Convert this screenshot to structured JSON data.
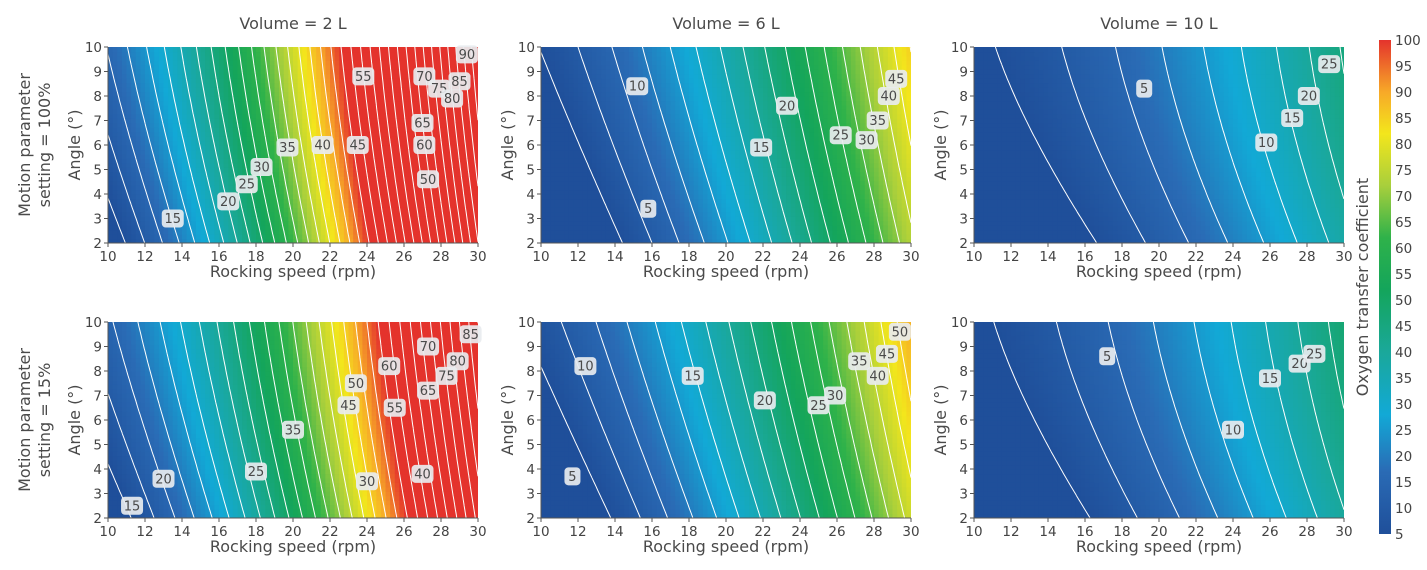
{
  "row_labels": [
    "Motion parameter\nsetting = 100%",
    "Motion parameter\nsetting = 15%"
  ],
  "colorbar": {
    "label": "Oxygen transfer coefficient",
    "min": 5,
    "max": 100,
    "ticks": [
      5,
      10,
      15,
      20,
      25,
      30,
      35,
      40,
      45,
      50,
      55,
      60,
      65,
      70,
      75,
      80,
      85,
      90,
      95,
      100
    ],
    "stops": [
      {
        "v": 5,
        "color": "#1f4f9a"
      },
      {
        "v": 17,
        "color": "#2a6bb5"
      },
      {
        "v": 28,
        "color": "#12a9d6"
      },
      {
        "v": 40,
        "color": "#1aa89a"
      },
      {
        "v": 52,
        "color": "#14a55b"
      },
      {
        "v": 62,
        "color": "#2fb24a"
      },
      {
        "v": 72,
        "color": "#a8cf3c"
      },
      {
        "v": 82,
        "color": "#f3e61c"
      },
      {
        "v": 90,
        "color": "#f7a928"
      },
      {
        "v": 100,
        "color": "#e4332c"
      }
    ]
  },
  "chart_data": [
    {
      "type": "contour",
      "title": "Volume = 2 L",
      "row": 0,
      "col": 0,
      "xlabel": "Rocking speed (rpm)",
      "ylabel": "Angle (°)",
      "xlim": [
        10,
        30
      ],
      "ylim": [
        2,
        10
      ],
      "xticks": [
        10,
        12,
        14,
        16,
        18,
        20,
        22,
        24,
        26,
        28,
        30
      ],
      "yticks": [
        2,
        3,
        4,
        5,
        6,
        7,
        8,
        9,
        10
      ],
      "contour_step": 5,
      "model": {
        "a": 3,
        "b": 4.2,
        "c": 0.2,
        "d": 1.6,
        "e": 0.07,
        "y0": 7.5
      },
      "contour_labels": [
        {
          "text": "15",
          "x": 13.5,
          "y": 3.0
        },
        {
          "text": "20",
          "x": 16.5,
          "y": 3.7
        },
        {
          "text": "25",
          "x": 17.5,
          "y": 4.4
        },
        {
          "text": "30",
          "x": 18.3,
          "y": 5.1
        },
        {
          "text": "35",
          "x": 19.7,
          "y": 5.9
        },
        {
          "text": "40",
          "x": 21.6,
          "y": 6.0
        },
        {
          "text": "45",
          "x": 23.5,
          "y": 6.0
        },
        {
          "text": "50",
          "x": 27.3,
          "y": 4.6
        },
        {
          "text": "55",
          "x": 23.8,
          "y": 8.8
        },
        {
          "text": "60",
          "x": 27.1,
          "y": 6.0
        },
        {
          "text": "65",
          "x": 27.0,
          "y": 6.9
        },
        {
          "text": "70",
          "x": 27.1,
          "y": 8.8
        },
        {
          "text": "75",
          "x": 27.9,
          "y": 8.3
        },
        {
          "text": "80",
          "x": 28.6,
          "y": 7.9
        },
        {
          "text": "85",
          "x": 29.0,
          "y": 8.6
        },
        {
          "text": "90",
          "x": 29.4,
          "y": 9.7
        }
      ]
    },
    {
      "type": "contour",
      "title": "Volume = 6 L",
      "row": 0,
      "col": 1,
      "xlabel": "Rocking speed (rpm)",
      "ylabel": "Angle (°)",
      "xlim": [
        10,
        30
      ],
      "ylim": [
        2,
        10
      ],
      "xticks": [
        10,
        12,
        14,
        16,
        18,
        20,
        22,
        24,
        26,
        28,
        30
      ],
      "yticks": [
        2,
        3,
        4,
        5,
        6,
        7,
        8,
        9,
        10
      ],
      "contour_step": 5,
      "model": {
        "a": -5,
        "b": 2.2,
        "c": 0.09,
        "d": 1.3,
        "e": 0.04,
        "y0": 8
      },
      "contour_labels": [
        {
          "text": "5",
          "x": 15.8,
          "y": 3.4
        },
        {
          "text": "10",
          "x": 15.2,
          "y": 8.4
        },
        {
          "text": "15",
          "x": 21.9,
          "y": 5.9
        },
        {
          "text": "20",
          "x": 23.3,
          "y": 7.6
        },
        {
          "text": "25",
          "x": 26.2,
          "y": 6.4
        },
        {
          "text": "30",
          "x": 27.6,
          "y": 6.2
        },
        {
          "text": "35",
          "x": 28.2,
          "y": 7.0
        },
        {
          "text": "40",
          "x": 28.8,
          "y": 8.0
        },
        {
          "text": "45",
          "x": 29.2,
          "y": 8.7
        }
      ]
    },
    {
      "type": "contour",
      "title": "Volume = 10 L",
      "row": 0,
      "col": 2,
      "xlabel": "Rocking speed (rpm)",
      "ylabel": "Angle (°)",
      "xlim": [
        10,
        30
      ],
      "ylim": [
        2,
        10
      ],
      "xticks": [
        10,
        12,
        14,
        16,
        18,
        20,
        22,
        24,
        26,
        28,
        30
      ],
      "yticks": [
        2,
        3,
        4,
        5,
        6,
        7,
        8,
        9,
        10
      ],
      "contour_step": 5,
      "model": {
        "a": -3,
        "b": 1.1,
        "c": 0.05,
        "d": 0.9,
        "e": 0.06,
        "y0": 7
      },
      "contour_labels": [
        {
          "text": "5",
          "x": 19.2,
          "y": 8.3
        },
        {
          "text": "10",
          "x": 25.8,
          "y": 6.1
        },
        {
          "text": "15",
          "x": 27.2,
          "y": 7.1
        },
        {
          "text": "20",
          "x": 28.1,
          "y": 8.0
        },
        {
          "text": "25",
          "x": 29.2,
          "y": 9.3
        }
      ]
    },
    {
      "type": "contour",
      "title": "",
      "row": 1,
      "col": 0,
      "xlabel": "Rocking speed (rpm)",
      "ylabel": "Angle (°)",
      "xlim": [
        10,
        30
      ],
      "ylim": [
        2,
        10
      ],
      "xticks": [
        10,
        12,
        14,
        16,
        18,
        20,
        22,
        24,
        26,
        28,
        30
      ],
      "yticks": [
        2,
        3,
        4,
        5,
        6,
        7,
        8,
        9,
        10
      ],
      "contour_step": 5,
      "model": {
        "a": 3,
        "b": 3.4,
        "c": 0.17,
        "d": 1.4,
        "e": 0.06,
        "y0": 8.5
      },
      "contour_labels": [
        {
          "text": "15",
          "x": 11.3,
          "y": 2.5
        },
        {
          "text": "20",
          "x": 13.0,
          "y": 3.6
        },
        {
          "text": "25",
          "x": 18.0,
          "y": 3.9
        },
        {
          "text": "30",
          "x": 24.0,
          "y": 3.5
        },
        {
          "text": "35",
          "x": 20.0,
          "y": 5.6
        },
        {
          "text": "40",
          "x": 27.0,
          "y": 3.8
        },
        {
          "text": "45",
          "x": 23.0,
          "y": 6.6
        },
        {
          "text": "50",
          "x": 23.4,
          "y": 7.5
        },
        {
          "text": "55",
          "x": 25.5,
          "y": 6.5
        },
        {
          "text": "60",
          "x": 25.2,
          "y": 8.2
        },
        {
          "text": "65",
          "x": 27.3,
          "y": 7.2
        },
        {
          "text": "70",
          "x": 27.3,
          "y": 9.0
        },
        {
          "text": "75",
          "x": 28.3,
          "y": 7.8
        },
        {
          "text": "80",
          "x": 28.9,
          "y": 8.4
        },
        {
          "text": "85",
          "x": 29.6,
          "y": 9.5
        }
      ]
    },
    {
      "type": "contour",
      "title": "",
      "row": 1,
      "col": 1,
      "xlabel": "Rocking speed (rpm)",
      "ylabel": "Angle (°)",
      "xlim": [
        10,
        30
      ],
      "ylim": [
        2,
        10
      ],
      "xticks": [
        10,
        12,
        14,
        16,
        18,
        20,
        22,
        24,
        26,
        28,
        30
      ],
      "yticks": [
        2,
        3,
        4,
        5,
        6,
        7,
        8,
        9,
        10
      ],
      "contour_step": 5,
      "model": {
        "a": -3,
        "b": 2.3,
        "c": 0.09,
        "d": 1.3,
        "e": 0.04,
        "y0": 9
      },
      "contour_labels": [
        {
          "text": "5",
          "x": 11.7,
          "y": 3.7
        },
        {
          "text": "10",
          "x": 12.4,
          "y": 8.2
        },
        {
          "text": "15",
          "x": 18.2,
          "y": 7.8
        },
        {
          "text": "20",
          "x": 22.1,
          "y": 6.8
        },
        {
          "text": "25",
          "x": 25.0,
          "y": 6.6
        },
        {
          "text": "30",
          "x": 25.9,
          "y": 7.0
        },
        {
          "text": "35",
          "x": 27.2,
          "y": 8.4
        },
        {
          "text": "40",
          "x": 28.2,
          "y": 7.8
        },
        {
          "text": "45",
          "x": 28.7,
          "y": 8.7
        },
        {
          "text": "50",
          "x": 29.4,
          "y": 9.6
        }
      ]
    },
    {
      "type": "contour",
      "title": "",
      "row": 1,
      "col": 2,
      "xlabel": "Rocking speed (rpm)",
      "ylabel": "Angle (°)",
      "xlim": [
        10,
        30
      ],
      "ylim": [
        2,
        10
      ],
      "xticks": [
        10,
        12,
        14,
        16,
        18,
        20,
        22,
        24,
        26,
        28,
        30
      ],
      "yticks": [
        2,
        3,
        4,
        5,
        6,
        7,
        8,
        9,
        10
      ],
      "contour_step": 5,
      "model": {
        "a": -3,
        "b": 1.2,
        "c": 0.05,
        "d": 0.9,
        "e": 0.06,
        "y0": 7
      },
      "contour_labels": [
        {
          "text": "5",
          "x": 17.2,
          "y": 8.6
        },
        {
          "text": "10",
          "x": 24.0,
          "y": 5.6
        },
        {
          "text": "15",
          "x": 26.0,
          "y": 7.7
        },
        {
          "text": "20",
          "x": 27.6,
          "y": 8.3
        },
        {
          "text": "25",
          "x": 28.4,
          "y": 8.7
        }
      ]
    }
  ]
}
